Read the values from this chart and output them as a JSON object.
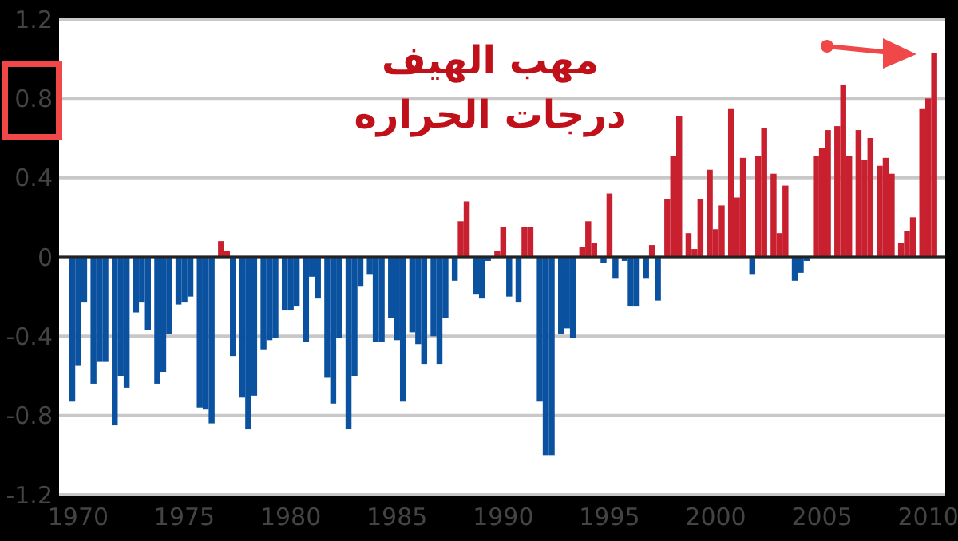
{
  "chart_data": {
    "type": "bar",
    "title": "مهب الهيف",
    "subtitle": "درجات الحراره",
    "x": [
      1969.72,
      1970,
      1970.28,
      1970.72,
      1971,
      1971.28,
      1971.72,
      1972,
      1972.28,
      1972.72,
      1973,
      1973.28,
      1973.72,
      1974,
      1974.28,
      1974.72,
      1975,
      1975.28,
      1975.72,
      1976,
      1976.28,
      1976.72,
      1977,
      1977.28,
      1977.72,
      1978,
      1978.28,
      1978.72,
      1979,
      1979.28,
      1979.72,
      1980,
      1980.28,
      1980.72,
      1981,
      1981.28,
      1981.72,
      1982,
      1982.28,
      1982.72,
      1983,
      1983.28,
      1983.72,
      1984,
      1984.28,
      1984.72,
      1985,
      1985.28,
      1985.72,
      1986,
      1986.28,
      1986.72,
      1987,
      1987.28,
      1987.72,
      1988,
      1988.28,
      1988.72,
      1989,
      1989.28,
      1989.72,
      1990,
      1990.28,
      1990.72,
      1991,
      1991.28,
      1991.72,
      1992,
      1992.28,
      1992.72,
      1993,
      1993.28,
      1993.72,
      1994,
      1994.28,
      1994.72,
      1995,
      1995.28,
      1995.72,
      1996,
      1996.28,
      1996.72,
      1997,
      1997.28,
      1997.72,
      1998,
      1998.28,
      1998.72,
      1999,
      1999.28,
      1999.72,
      2000,
      2000.28,
      2000.72,
      2001,
      2001.28,
      2001.72,
      2002,
      2002.28,
      2002.72,
      2003,
      2003.28,
      2003.72,
      2004,
      2004.28,
      2004.72,
      2005,
      2005.28,
      2005.72,
      2006,
      2006.28,
      2006.72,
      2007,
      2007.28,
      2007.72,
      2008,
      2008.28,
      2008.72,
      2009,
      2009.28,
      2009.72,
      2010,
      2010.28
    ],
    "series": [
      {
        "color": "#0a52a0",
        "values": [
          -0.73,
          -0.55,
          -0.23,
          -0.64,
          -0.53,
          -0.53,
          -0.85,
          -0.6,
          -0.66,
          -0.28,
          -0.23,
          -0.37,
          -0.64,
          -0.58,
          -0.39,
          -0.24,
          -0.23,
          -0.2,
          -0.76,
          -0.77,
          -0.84,
          null,
          null,
          -0.5,
          -0.71,
          -0.87,
          -0.7,
          -0.47,
          -0.42,
          -0.41,
          -0.27,
          -0.27,
          -0.25,
          -0.43,
          -0.1,
          -0.21,
          -0.61,
          -0.74,
          -0.41,
          -0.87,
          -0.6,
          -0.15,
          -0.09,
          -0.43,
          -0.43,
          -0.31,
          -0.42,
          -0.73,
          -0.38,
          -0.44,
          -0.54,
          -0.4,
          -0.54,
          -0.31,
          -0.12,
          null,
          null,
          -0.19,
          -0.21,
          -0.02,
          null,
          null,
          -0.2,
          -0.23,
          null,
          null,
          -0.73,
          -1.0,
          -1.0,
          -0.39,
          -0.36,
          -0.41,
          null,
          null,
          null,
          -0.03,
          null,
          -0.11,
          -0.02,
          -0.25,
          -0.25,
          -0.11,
          null,
          -0.22,
          null,
          null,
          null,
          null,
          null,
          null,
          null,
          null,
          null,
          null,
          null,
          null,
          -0.09,
          null,
          null,
          null,
          null,
          null,
          -0.12,
          -0.08,
          -0.02,
          null,
          null,
          null,
          null,
          null,
          null,
          null,
          null,
          null,
          null,
          null,
          null,
          null,
          null,
          null,
          null,
          null,
          null
        ]
      },
      {
        "color": "#c8202f",
        "values": [
          null,
          null,
          null,
          null,
          null,
          null,
          null,
          null,
          null,
          null,
          null,
          null,
          null,
          null,
          null,
          null,
          null,
          null,
          null,
          null,
          null,
          0.08,
          0.03,
          null,
          null,
          null,
          null,
          null,
          null,
          null,
          null,
          null,
          null,
          null,
          null,
          null,
          null,
          null,
          null,
          null,
          null,
          null,
          null,
          null,
          null,
          null,
          null,
          null,
          null,
          null,
          null,
          null,
          null,
          null,
          null,
          0.18,
          0.28,
          null,
          null,
          null,
          0.03,
          0.15,
          null,
          null,
          0.15,
          0.15,
          null,
          null,
          null,
          null,
          null,
          null,
          0.05,
          0.18,
          0.07,
          null,
          0.32,
          null,
          null,
          null,
          null,
          null,
          0.06,
          null,
          0.29,
          0.51,
          0.71,
          0.12,
          0.04,
          0.29,
          0.44,
          0.14,
          0.26,
          0.75,
          0.3,
          0.5,
          null,
          0.51,
          0.65,
          0.42,
          0.12,
          0.36,
          null,
          null,
          null,
          0.51,
          0.55,
          0.64,
          0.66,
          0.87,
          0.51,
          0.64,
          0.49,
          0.6,
          0.46,
          0.5,
          0.42,
          0.07,
          0.13,
          0.2,
          0.75,
          0.8,
          1.03
        ]
      }
    ],
    "xlim": [
      1969.1,
      2010.8
    ],
    "xticks": [
      1970,
      1975,
      1980,
      1985,
      1990,
      1995,
      2000,
      2005,
      2010
    ],
    "ylim": [
      -1.2,
      1.2
    ],
    "yticks": [
      -1.2,
      -0.8,
      -0.4,
      0,
      0.4,
      0.8,
      1.2
    ],
    "grid": "y"
  }
}
